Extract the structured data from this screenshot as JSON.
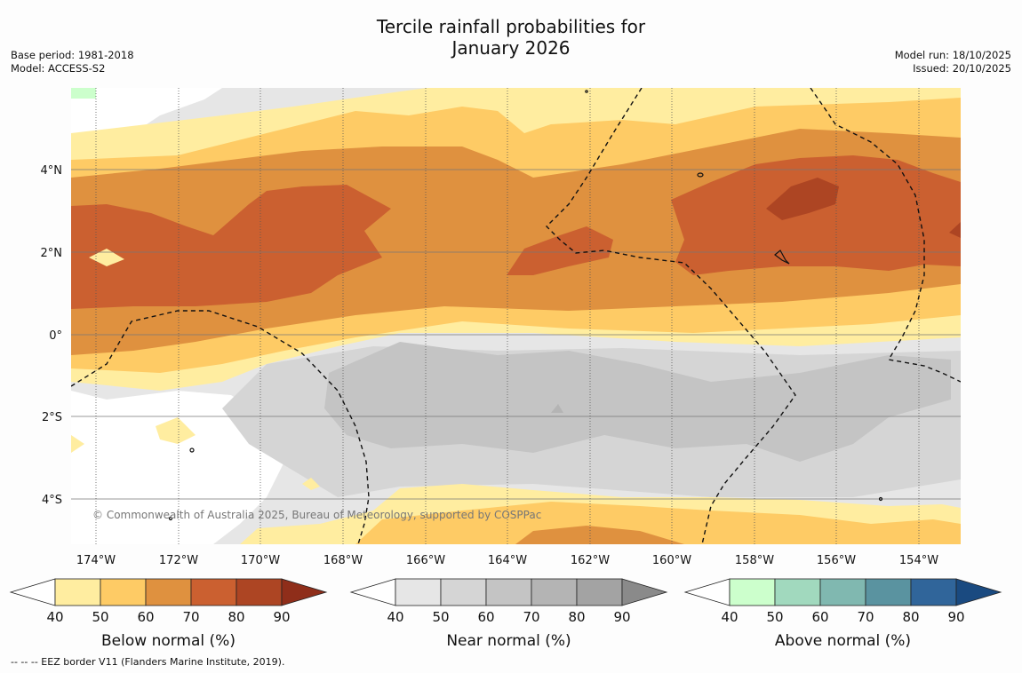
{
  "title": {
    "line1": "Tercile rainfall probabilities for",
    "line2": "January 2026"
  },
  "meta_left": {
    "base_period": "Base period: 1981-2018",
    "model": "Model: ACCESS-S2"
  },
  "meta_right": {
    "model_run": "Model run: 18/10/2025",
    "issued": "Issued: 20/10/2025"
  },
  "map": {
    "lat_labels": [
      "4°N",
      "2°N",
      "0°",
      "2°S",
      "4°S"
    ],
    "lon_labels": [
      "174°W",
      "172°W",
      "170°W",
      "168°W",
      "166°W",
      "164°W",
      "162°W",
      "160°W",
      "158°W",
      "156°W",
      "154°W"
    ],
    "copyright": "© Commonwealth of Australia 2025, Bureau of Meteorology, supported by COSPPac"
  },
  "colorbars": [
    {
      "label": "Below normal (%)",
      "ticks": [
        "40",
        "50",
        "60",
        "70",
        "80",
        "90"
      ],
      "colors": [
        "#ffeda0",
        "#fecb65",
        "#df913f",
        "#cb6030",
        "#ad4523",
        "#8f2e1a"
      ]
    },
    {
      "label": "Near normal (%)",
      "ticks": [
        "40",
        "50",
        "60",
        "70",
        "80",
        "90"
      ],
      "colors": [
        "#e6e6e6",
        "#d5d5d5",
        "#c4c4c4",
        "#b4b4b4",
        "#a3a3a3",
        "#8a8a8a"
      ]
    },
    {
      "label": "Above normal (%)",
      "ticks": [
        "40",
        "50",
        "60",
        "70",
        "80",
        "90"
      ],
      "colors": [
        "#ccffcc",
        "#a1d9be",
        "#80b8b0",
        "#5a93a0",
        "#30659a",
        "#1a4a80"
      ]
    }
  ],
  "footer": "--  --  -- EEZ border V11 (Flanders Marine Institute, 2019)."
}
